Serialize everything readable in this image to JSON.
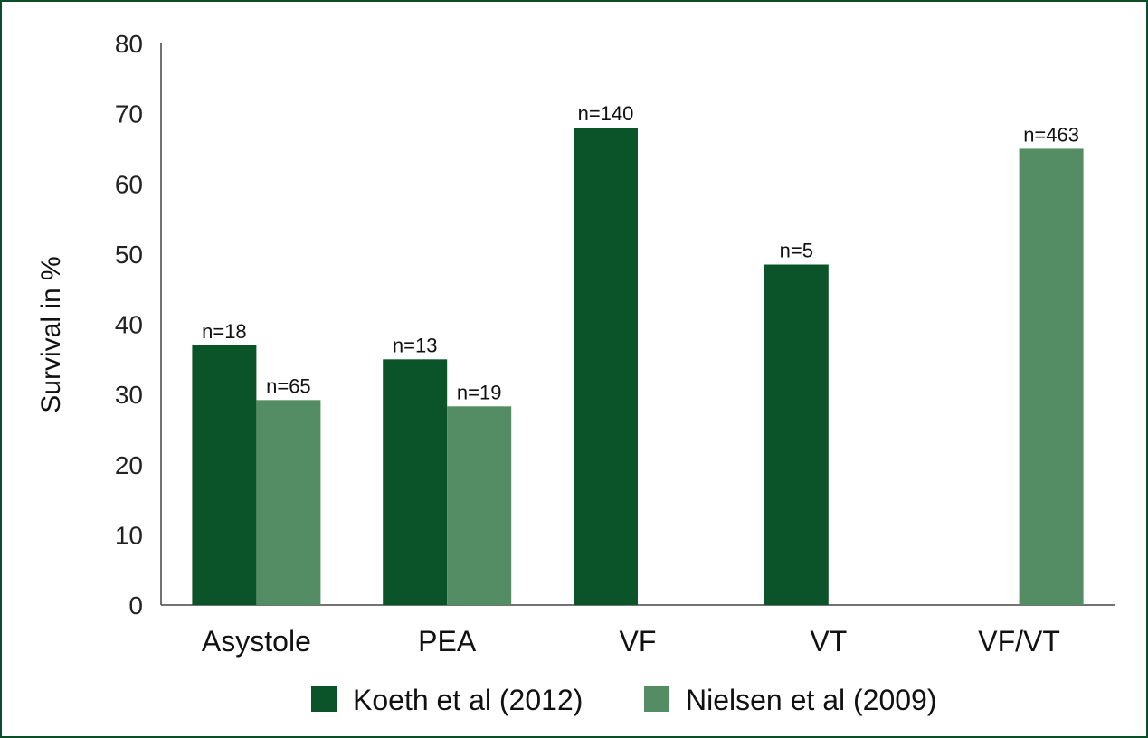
{
  "chart_data": {
    "type": "bar",
    "title": "",
    "xlabel": "",
    "ylabel": "Survival in %",
    "ylim": [
      0,
      80
    ],
    "yticks": [
      0,
      10,
      20,
      30,
      40,
      50,
      60,
      70,
      80
    ],
    "categories": [
      "Asystole",
      "PEA",
      "VF",
      "VT",
      "VF/VT"
    ],
    "series": [
      {
        "name": "Koeth et al (2012)",
        "color": "#0b5328",
        "values": [
          37,
          35,
          68,
          48.5,
          null
        ],
        "labels": [
          "n=18",
          "n=13",
          "n=140",
          "n=5",
          ""
        ]
      },
      {
        "name": "Nielsen et al (2009)",
        "color": "#548c63",
        "values": [
          29.2,
          28.3,
          null,
          null,
          65
        ],
        "labels": [
          "n=65",
          "n=19",
          "",
          "",
          "n=463"
        ]
      }
    ],
    "legend": "bottom",
    "grid": false
  }
}
